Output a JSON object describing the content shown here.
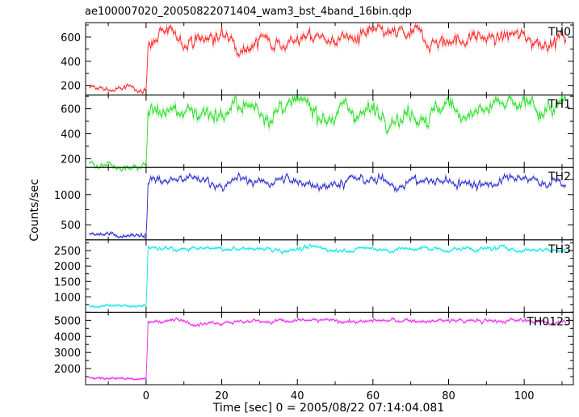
{
  "chart_data": {
    "type": "line",
    "title": "ae100007020_20050822071404_wam3_bst_4band_16bin.qdp",
    "xlabel": "Time [sec] 0 = 2005/08/22 07:14:04.081",
    "ylabel": "Counts/sec",
    "xlim": [
      -16,
      113
    ],
    "x_ticks": [
      0,
      20,
      40,
      60,
      80,
      100
    ],
    "x_tick_labels": [
      "0",
      "20",
      "40",
      "60",
      "80",
      "100"
    ],
    "grid": false,
    "legend": "none",
    "time_bin_sec": 0.25,
    "panels": [
      {
        "name": "TH0",
        "color": "#ff2020",
        "ylim": [
          120,
          720
        ],
        "y_ticks": [
          200,
          400,
          600
        ],
        "y_tick_labels": [
          "200",
          "400",
          "600"
        ],
        "pre_trigger_level": 170,
        "post_trigger_level": 590,
        "step_time": 0.5,
        "peak_value": 700,
        "noise": 40
      },
      {
        "name": "TH1",
        "color": "#22dd22",
        "ylim": [
          130,
          710
        ],
        "y_ticks": [
          200,
          400,
          600
        ],
        "y_tick_labels": [
          "200",
          "400",
          "600"
        ],
        "pre_trigger_level": 160,
        "post_trigger_level": 590,
        "step_time": 0.5,
        "peak_value": 700,
        "noise": 45
      },
      {
        "name": "TH2",
        "color": "#2222cc",
        "ylim": [
          250,
          1450
        ],
        "y_ticks": [
          500,
          1000
        ],
        "y_tick_labels": [
          "500",
          "1000"
        ],
        "pre_trigger_level": 350,
        "post_trigger_level": 1210,
        "step_time": 0.5,
        "peak_value": 1400,
        "noise": 55
      },
      {
        "name": "TH3",
        "color": "#00e5e5",
        "ylim": [
          500,
          2850
        ],
        "y_ticks": [
          1000,
          1500,
          2000,
          2500
        ],
        "y_tick_labels": [
          "1000",
          "1500",
          "2000",
          "2500"
        ],
        "pre_trigger_level": 700,
        "post_trigger_level": 2550,
        "step_time": 0.5,
        "peak_value": 2700,
        "noise": 45
      },
      {
        "name": "TH0123",
        "color": "#ee22ee",
        "ylim": [
          1000,
          5500
        ],
        "y_ticks": [
          2000,
          3000,
          4000,
          5000
        ],
        "y_tick_labels": [
          "2000",
          "3000",
          "4000",
          "5000"
        ],
        "pre_trigger_level": 1400,
        "post_trigger_level": 4950,
        "step_time": 0.5,
        "peak_value": 5250,
        "noise": 80
      }
    ]
  }
}
